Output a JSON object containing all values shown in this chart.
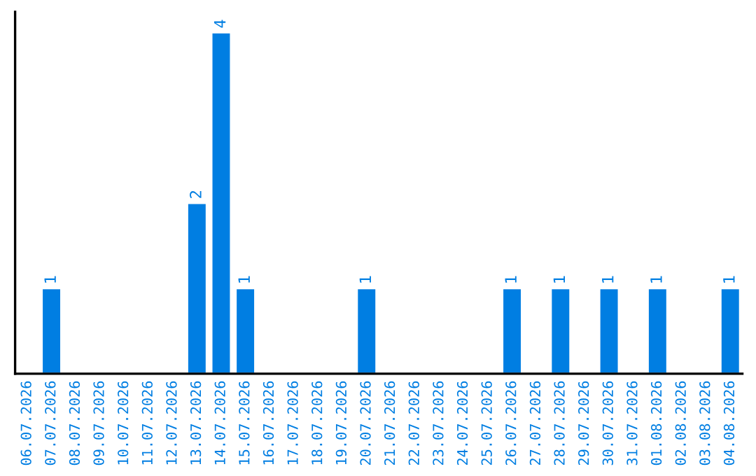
{
  "chart_data": {
    "type": "bar",
    "categories": [
      "06.07.2026",
      "07.07.2026",
      "08.07.2026",
      "09.07.2026",
      "10.07.2026",
      "11.07.2026",
      "12.07.2026",
      "13.07.2026",
      "14.07.2026",
      "15.07.2026",
      "16.07.2026",
      "17.07.2026",
      "18.07.2026",
      "19.07.2026",
      "20.07.2026",
      "21.07.2026",
      "22.07.2026",
      "23.07.2026",
      "24.07.2026",
      "25.07.2026",
      "26.07.2026",
      "27.07.2026",
      "28.07.2026",
      "29.07.2026",
      "30.07.2026",
      "31.07.2026",
      "01.08.2026",
      "02.08.2026",
      "03.08.2026",
      "04.08.2026"
    ],
    "values": [
      0,
      1,
      0,
      0,
      0,
      0,
      0,
      2,
      4,
      1,
      0,
      0,
      0,
      0,
      1,
      0,
      0,
      0,
      0,
      0,
      1,
      0,
      1,
      0,
      1,
      0,
      1,
      0,
      0,
      1
    ],
    "value_labels": [
      null,
      "1",
      null,
      null,
      null,
      null,
      null,
      "2",
      "4",
      "1",
      null,
      null,
      null,
      null,
      "1",
      null,
      null,
      null,
      null,
      null,
      "1",
      null,
      "1",
      null,
      "1",
      null,
      "1",
      null,
      null,
      "1"
    ],
    "color": "#007ee2",
    "tick_labels": "x",
    "grid": false
  }
}
